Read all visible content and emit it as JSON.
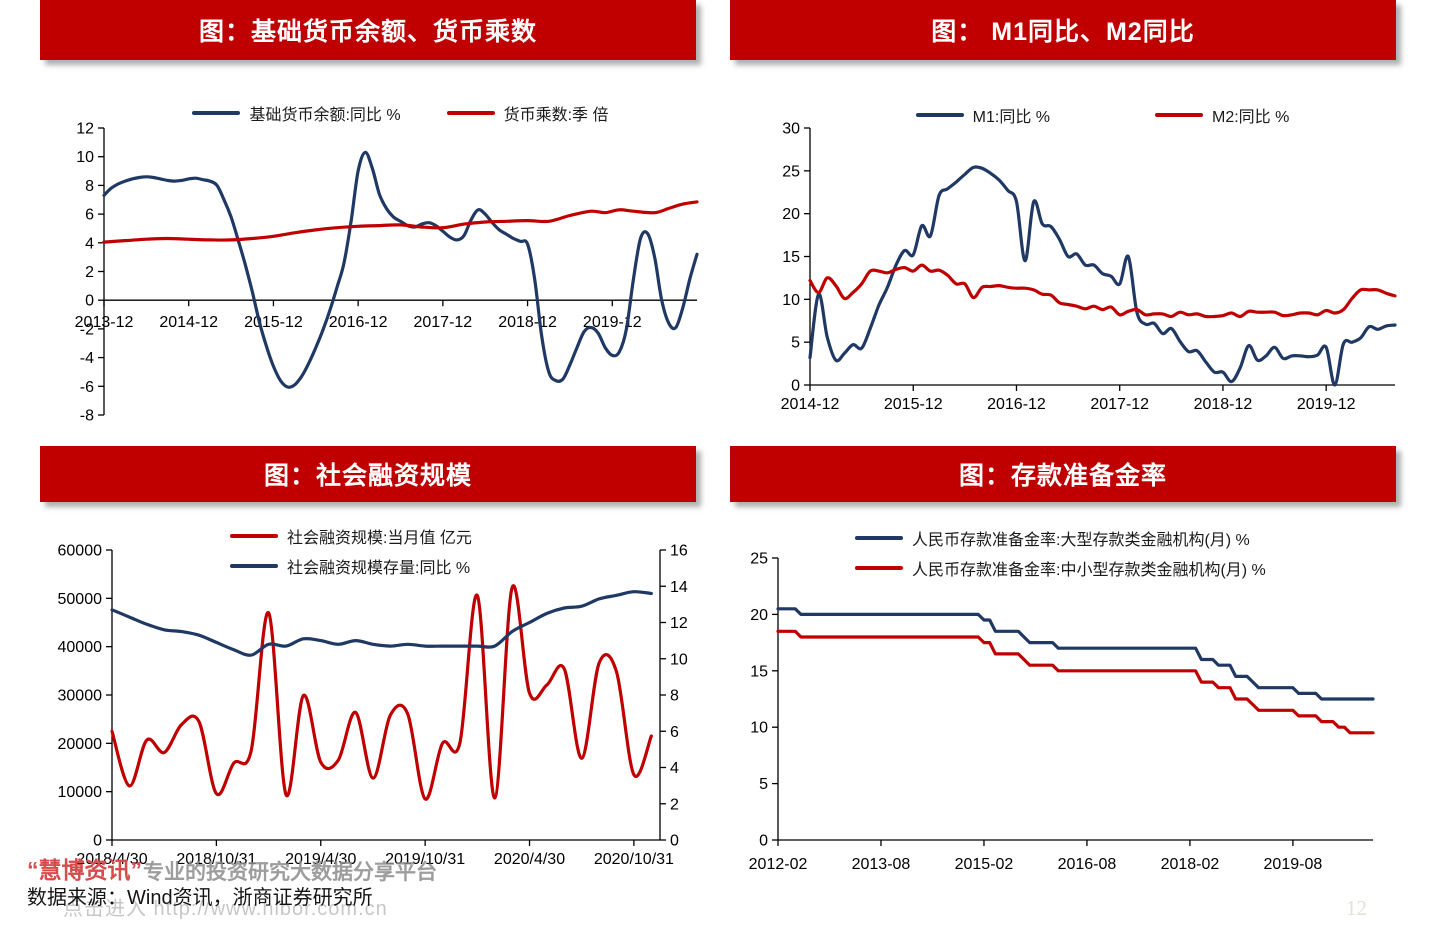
{
  "colors": {
    "banner_red": "#C00000",
    "line_red": "#C00000",
    "line_blue": "#1F3864",
    "axis_black": "#000000"
  },
  "footer": {
    "logo": "“慧博资讯”",
    "tagline": "专业的投资研究大数据分享平台",
    "source": "数据来源：Wind资讯，浙商证券研究所",
    "watermark": "点击进入  http://www.hibor.com.cn",
    "page_number": "12"
  },
  "chart_data": [
    {
      "id": "base-money",
      "type": "line",
      "title": "图：基础货币余额、货币乘数",
      "x_unit": "months since 2013-12",
      "xlim": [
        0,
        84
      ],
      "ylim": [
        -8,
        12
      ],
      "x_axis_at": 0,
      "y_ticks": [
        12,
        10,
        8,
        6,
        4,
        2,
        0,
        -2,
        -4,
        -6,
        -8
      ],
      "x_ticks": [
        {
          "x": 0,
          "label": "2013-12"
        },
        {
          "x": 12,
          "label": "2014-12"
        },
        {
          "x": 24,
          "label": "2015-12"
        },
        {
          "x": 36,
          "label": "2016-12"
        },
        {
          "x": 48,
          "label": "2017-12"
        },
        {
          "x": 60,
          "label": "2018-12"
        },
        {
          "x": 72,
          "label": "2019-12"
        }
      ],
      "legend": [
        {
          "label": "基础货币余额:同比 %",
          "color": "#1F3864"
        },
        {
          "label": "货币乘数:季 倍",
          "color": "#C00000"
        }
      ],
      "series": [
        {
          "key": "base-money-yoy",
          "name": "基础货币余额:同比 %",
          "color": "#1F3864",
          "smooth": true,
          "values": [
            7.3,
            7.8,
            8.1,
            8.3,
            8.45,
            8.55,
            8.6,
            8.55,
            8.45,
            8.35,
            8.3,
            8.35,
            8.45,
            8.5,
            8.4,
            8.3,
            8.0,
            7.0,
            5.8,
            4.2,
            2.5,
            0.6,
            -1.5,
            -3.2,
            -4.6,
            -5.6,
            -6.05,
            -5.9,
            -5.3,
            -4.4,
            -3.3,
            -2.1,
            -0.7,
            0.9,
            2.6,
            5.5,
            9.0,
            10.3,
            9.2,
            7.4,
            6.4,
            5.8,
            5.5,
            5.2,
            5.1,
            5.3,
            5.4,
            5.2,
            4.8,
            4.4,
            4.2,
            4.5,
            5.6,
            6.3,
            6.0,
            5.4,
            4.9,
            4.6,
            4.3,
            4.1,
            3.9,
            1.5,
            -2.5,
            -5.0,
            -5.6,
            -5.5,
            -4.5,
            -3.3,
            -2.2,
            -1.9,
            -2.3,
            -3.3,
            -3.85,
            -3.6,
            -2.0,
            1.5,
            4.3,
            4.65,
            3.0,
            0.0,
            -1.6,
            -1.9,
            -0.5,
            1.5,
            3.2
          ]
        },
        {
          "key": "money-multiplier",
          "name": "货币乘数:季 倍",
          "color": "#C00000",
          "smooth": true,
          "points": [
            [
              0,
              4.05
            ],
            [
              3,
              4.15
            ],
            [
              6,
              4.25
            ],
            [
              9,
              4.3
            ],
            [
              12,
              4.25
            ],
            [
              15,
              4.2
            ],
            [
              18,
              4.2
            ],
            [
              21,
              4.3
            ],
            [
              24,
              4.45
            ],
            [
              27,
              4.7
            ],
            [
              30,
              4.9
            ],
            [
              33,
              5.05
            ],
            [
              36,
              5.15
            ],
            [
              39,
              5.2
            ],
            [
              42,
              5.25
            ],
            [
              45,
              5.1
            ],
            [
              48,
              5.05
            ],
            [
              51,
              5.3
            ],
            [
              54,
              5.45
            ],
            [
              57,
              5.5
            ],
            [
              60,
              5.55
            ],
            [
              63,
              5.5
            ],
            [
              66,
              5.9
            ],
            [
              69,
              6.2
            ],
            [
              71,
              6.1
            ],
            [
              73,
              6.3
            ],
            [
              75,
              6.2
            ],
            [
              78,
              6.1
            ],
            [
              80,
              6.4
            ],
            [
              82,
              6.7
            ],
            [
              84,
              6.85
            ]
          ]
        }
      ]
    },
    {
      "id": "m1-m2",
      "type": "line",
      "title": "图： M1同比、M2同比",
      "x_unit": "months since 2014-12",
      "xlim": [
        0,
        68
      ],
      "ylim": [
        0,
        30
      ],
      "y_ticks": [
        30,
        25,
        20,
        15,
        10,
        5,
        0
      ],
      "x_ticks": [
        {
          "x": 0,
          "label": "2014-12"
        },
        {
          "x": 12,
          "label": "2015-12"
        },
        {
          "x": 24,
          "label": "2016-12"
        },
        {
          "x": 36,
          "label": "2017-12"
        },
        {
          "x": 48,
          "label": "2018-12"
        },
        {
          "x": 60,
          "label": "2019-12"
        }
      ],
      "legend": [
        {
          "label": "M1:同比 %",
          "color": "#1F3864"
        },
        {
          "label": "M2:同比 %",
          "color": "#C00000"
        }
      ],
      "series": [
        {
          "key": "m1-yoy",
          "name": "M1:同比 %",
          "color": "#1F3864",
          "smooth": true,
          "values": [
            3.2,
            10.6,
            5.6,
            2.9,
            3.7,
            4.7,
            4.3,
            6.6,
            9.3,
            11.4,
            14.0,
            15.7,
            15.2,
            18.6,
            17.4,
            22.1,
            22.9,
            23.7,
            24.6,
            25.4,
            25.3,
            24.7,
            23.9,
            22.7,
            21.4,
            14.5,
            21.4,
            18.8,
            18.5,
            17.0,
            15.0,
            15.3,
            14.0,
            14.0,
            13.0,
            12.7,
            11.8,
            15.0,
            8.5,
            7.1,
            7.2,
            6.0,
            6.6,
            5.1,
            3.9,
            4.0,
            2.7,
            1.5,
            1.5,
            0.4,
            2.0,
            4.6,
            2.9,
            3.4,
            4.4,
            3.1,
            3.4,
            3.4,
            3.3,
            3.5,
            4.4,
            0.0,
            4.8,
            5.0,
            5.5,
            6.8,
            6.5,
            6.9,
            7.0
          ]
        },
        {
          "key": "m2-yoy",
          "name": "M2:同比 %",
          "color": "#C00000",
          "smooth": true,
          "values": [
            12.2,
            10.8,
            12.5,
            11.6,
            10.1,
            10.8,
            11.8,
            13.3,
            13.3,
            13.1,
            13.5,
            13.7,
            13.3,
            14.0,
            13.3,
            13.4,
            12.8,
            11.8,
            11.8,
            10.2,
            11.4,
            11.5,
            11.6,
            11.4,
            11.3,
            11.3,
            11.1,
            10.6,
            10.5,
            9.6,
            9.4,
            9.2,
            8.9,
            9.2,
            8.8,
            9.1,
            8.2,
            8.6,
            8.8,
            8.2,
            8.3,
            8.3,
            8.0,
            8.5,
            8.2,
            8.3,
            8.0,
            8.0,
            8.1,
            8.4,
            8.0,
            8.6,
            8.5,
            8.5,
            8.5,
            8.1,
            8.2,
            8.4,
            8.4,
            8.2,
            8.7,
            8.4,
            8.8,
            10.1,
            11.1,
            11.1,
            11.1,
            10.7,
            10.4
          ]
        }
      ]
    },
    {
      "id": "social-financing",
      "type": "line",
      "title": "图：社会融资规模",
      "x_unit": "months since 2018-04",
      "xlim": [
        0,
        31.5
      ],
      "ylim": [
        0,
        60000
      ],
      "y_ticks": [
        60000,
        50000,
        40000,
        30000,
        20000,
        10000,
        0
      ],
      "y2lim": [
        0,
        16
      ],
      "y2_ticks": [
        16,
        14,
        12,
        10,
        8,
        6,
        4,
        2,
        0
      ],
      "x_ticks": [
        {
          "x": 0,
          "label": "2018/4/30"
        },
        {
          "x": 6,
          "label": "2018/10/31"
        },
        {
          "x": 12,
          "label": "2019/4/30"
        },
        {
          "x": 18,
          "label": "2019/10/31"
        },
        {
          "x": 24,
          "label": "2020/4/30"
        },
        {
          "x": 30,
          "label": "2020/10/31"
        }
      ],
      "legend": [
        {
          "label": "社会融资规模:当月值 亿元",
          "color": "#C00000"
        },
        {
          "label": "社会融资规模存量:同比 %",
          "color": "#1F3864"
        }
      ],
      "series": [
        {
          "key": "tsf-monthly",
          "name": "社会融资规模:当月值 亿元",
          "color": "#C00000",
          "smooth": true,
          "axis": "y",
          "values": [
            22500,
            11200,
            20700,
            18100,
            23900,
            24500,
            9600,
            15900,
            18500,
            47000,
            9400,
            29900,
            16100,
            16500,
            26400,
            12800,
            25800,
            26100,
            8500,
            20000,
            20100,
            50600,
            8700,
            52200,
            30400,
            32100,
            35400,
            16900,
            36600,
            34800,
            13500,
            21500
          ]
        },
        {
          "key": "tsf-stock-yoy",
          "name": "社会融资规模存量:同比 %",
          "color": "#1F3864",
          "smooth": true,
          "axis": "y2",
          "values": [
            12.7,
            12.3,
            11.9,
            11.6,
            11.5,
            11.3,
            10.9,
            10.5,
            10.2,
            10.8,
            10.7,
            11.1,
            11.0,
            10.8,
            11.0,
            10.8,
            10.7,
            10.8,
            10.7,
            10.7,
            10.7,
            10.7,
            10.7,
            11.5,
            12.0,
            12.5,
            12.8,
            12.9,
            13.3,
            13.5,
            13.7,
            13.6
          ]
        }
      ]
    },
    {
      "id": "reserve-ratio",
      "type": "line",
      "title": "图：存款准备金率",
      "x_unit": "months since 2012-02",
      "xlim": [
        0,
        104
      ],
      "ylim": [
        0,
        25
      ],
      "y_ticks": [
        25,
        20,
        15,
        10,
        5,
        0
      ],
      "x_ticks": [
        {
          "x": 0,
          "label": "2012-02"
        },
        {
          "x": 18,
          "label": "2013-08"
        },
        {
          "x": 36,
          "label": "2015-02"
        },
        {
          "x": 54,
          "label": "2016-08"
        },
        {
          "x": 72,
          "label": "2018-02"
        },
        {
          "x": 90,
          "label": "2019-08"
        }
      ],
      "legend": [
        {
          "label": "人民币存款准备金率:大型存款类金融机构(月) %",
          "color": "#1F3864"
        },
        {
          "label": "人民币存款准备金率:中小型存款类金融机构(月) %",
          "color": "#C00000"
        }
      ],
      "series": [
        {
          "key": "rrr-large",
          "name": "人民币存款准备金率:大型存款类金融机构(月) %",
          "color": "#1F3864",
          "smooth": false,
          "points": [
            [
              0,
              20.5
            ],
            [
              3,
              20.5
            ],
            [
              4,
              20
            ],
            [
              35,
              20
            ],
            [
              36,
              19.5
            ],
            [
              37,
              19.5
            ],
            [
              38,
              18.5
            ],
            [
              42,
              18.5
            ],
            [
              43,
              18
            ],
            [
              44,
              17.5
            ],
            [
              48,
              17.5
            ],
            [
              49,
              17
            ],
            [
              73,
              17
            ],
            [
              74,
              16
            ],
            [
              76,
              16
            ],
            [
              77,
              15.5
            ],
            [
              79,
              15.5
            ],
            [
              80,
              14.5
            ],
            [
              82,
              14.5
            ],
            [
              83,
              14
            ],
            [
              84,
              13.5
            ],
            [
              90,
              13.5
            ],
            [
              91,
              13
            ],
            [
              94,
              13
            ],
            [
              95,
              12.5
            ],
            [
              104,
              12.5
            ]
          ]
        },
        {
          "key": "rrr-small",
          "name": "人民币存款准备金率:中小型存款类金融机构(月) %",
          "color": "#C00000",
          "smooth": false,
          "points": [
            [
              0,
              18.5
            ],
            [
              3,
              18.5
            ],
            [
              4,
              18
            ],
            [
              35,
              18
            ],
            [
              36,
              17.5
            ],
            [
              37,
              17.5
            ],
            [
              38,
              16.5
            ],
            [
              42,
              16.5
            ],
            [
              43,
              16
            ],
            [
              44,
              15.5
            ],
            [
              48,
              15.5
            ],
            [
              49,
              15
            ],
            [
              73,
              15
            ],
            [
              74,
              14
            ],
            [
              76,
              14
            ],
            [
              77,
              13.5
            ],
            [
              79,
              13.5
            ],
            [
              80,
              12.5
            ],
            [
              82,
              12.5
            ],
            [
              83,
              12
            ],
            [
              84,
              11.5
            ],
            [
              90,
              11.5
            ],
            [
              91,
              11
            ],
            [
              94,
              11
            ],
            [
              95,
              10.5
            ],
            [
              97,
              10.5
            ],
            [
              98,
              10
            ],
            [
              99,
              10
            ],
            [
              100,
              9.5
            ],
            [
              104,
              9.5
            ]
          ]
        }
      ]
    }
  ]
}
